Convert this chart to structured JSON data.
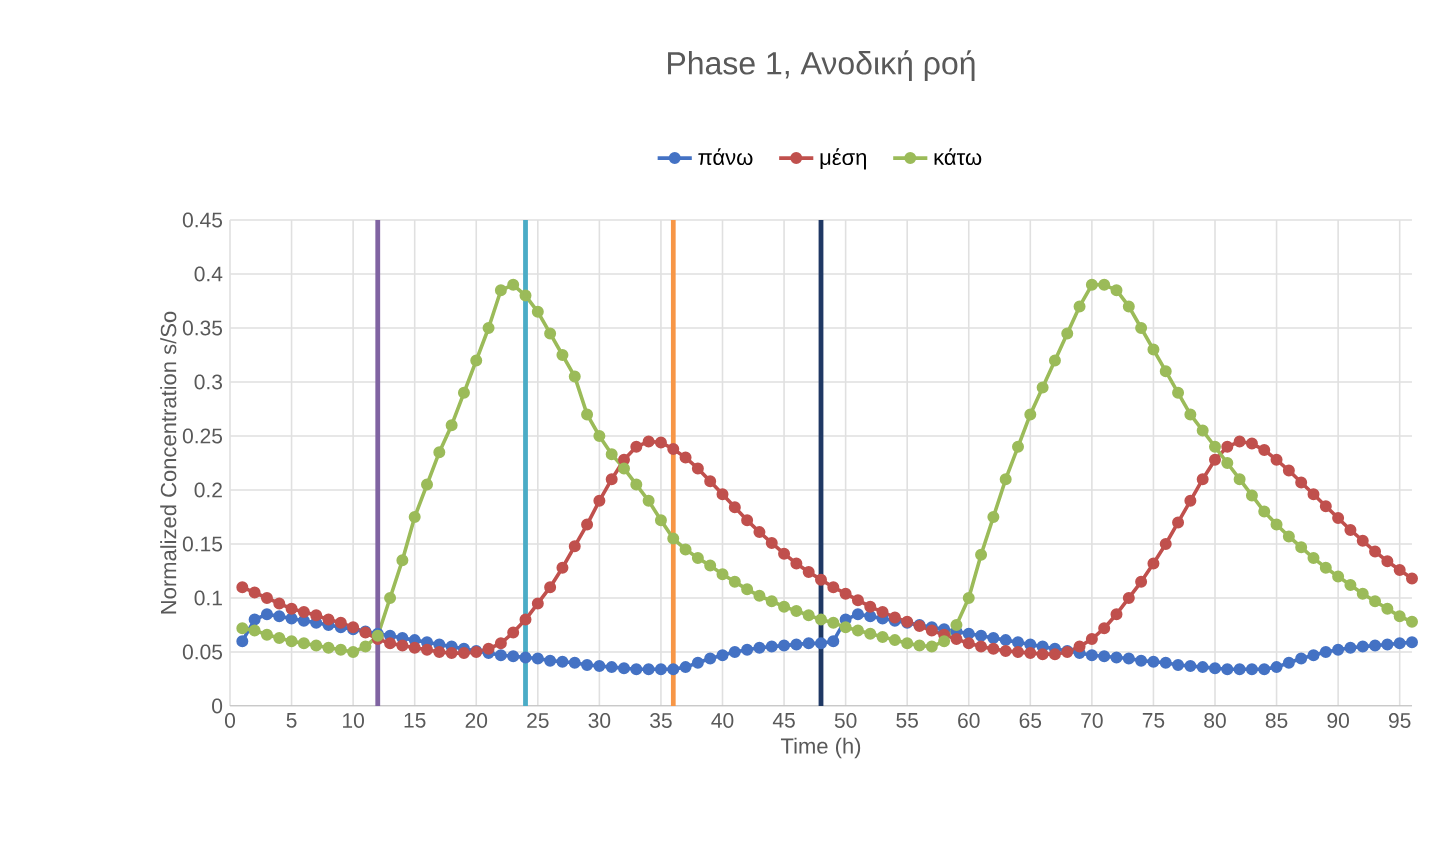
{
  "chart_data": {
    "type": "line",
    "title": "Phase 1, Ανοδική ροή",
    "xlabel": "Time (h)",
    "ylabel": "Normalized Concentration s/So",
    "x": [
      1,
      2,
      3,
      4,
      5,
      6,
      7,
      8,
      9,
      10,
      11,
      12,
      13,
      14,
      15,
      16,
      17,
      18,
      19,
      20,
      21,
      22,
      23,
      24,
      25,
      26,
      27,
      28,
      29,
      30,
      31,
      32,
      33,
      34,
      35,
      36,
      37,
      38,
      39,
      40,
      41,
      42,
      43,
      44,
      45,
      46,
      47,
      48,
      49,
      50,
      51,
      52,
      53,
      54,
      55,
      56,
      57,
      58,
      59,
      60,
      61,
      62,
      63,
      64,
      65,
      66,
      67,
      68,
      69,
      70,
      71,
      72,
      73,
      74,
      75,
      76,
      77,
      78,
      79,
      80,
      81,
      82,
      83,
      84,
      85,
      86,
      87,
      88,
      89,
      90,
      91,
      92,
      93,
      94,
      95,
      96
    ],
    "series": [
      {
        "name": "πάνω",
        "color": "#4472c4",
        "values": [
          0.06,
          0.08,
          0.085,
          0.083,
          0.081,
          0.079,
          0.077,
          0.075,
          0.073,
          0.071,
          0.069,
          0.067,
          0.065,
          0.063,
          0.061,
          0.059,
          0.057,
          0.055,
          0.053,
          0.051,
          0.049,
          0.047,
          0.046,
          0.045,
          0.044,
          0.042,
          0.041,
          0.04,
          0.038,
          0.037,
          0.036,
          0.035,
          0.034,
          0.034,
          0.034,
          0.034,
          0.036,
          0.04,
          0.044,
          0.047,
          0.05,
          0.052,
          0.054,
          0.055,
          0.056,
          0.057,
          0.058,
          0.058,
          0.06,
          0.08,
          0.085,
          0.083,
          0.081,
          0.079,
          0.077,
          0.075,
          0.073,
          0.071,
          0.069,
          0.067,
          0.065,
          0.063,
          0.061,
          0.059,
          0.057,
          0.055,
          0.053,
          0.051,
          0.049,
          0.047,
          0.046,
          0.045,
          0.044,
          0.042,
          0.041,
          0.04,
          0.038,
          0.037,
          0.036,
          0.035,
          0.034,
          0.034,
          0.034,
          0.034,
          0.036,
          0.04,
          0.044,
          0.047,
          0.05,
          0.052,
          0.054,
          0.055,
          0.056,
          0.057,
          0.058,
          0.059
        ]
      },
      {
        "name": "μέση",
        "color": "#c0504d",
        "values": [
          0.11,
          0.105,
          0.1,
          0.095,
          0.09,
          0.087,
          0.084,
          0.08,
          0.077,
          0.073,
          0.068,
          0.062,
          0.058,
          0.056,
          0.054,
          0.052,
          0.05,
          0.049,
          0.049,
          0.05,
          0.053,
          0.058,
          0.068,
          0.08,
          0.095,
          0.11,
          0.128,
          0.148,
          0.168,
          0.19,
          0.21,
          0.228,
          0.24,
          0.245,
          0.244,
          0.238,
          0.23,
          0.22,
          0.208,
          0.196,
          0.184,
          0.172,
          0.161,
          0.151,
          0.141,
          0.132,
          0.124,
          0.117,
          0.11,
          0.104,
          0.098,
          0.092,
          0.087,
          0.082,
          0.078,
          0.074,
          0.07,
          0.066,
          0.062,
          0.058,
          0.055,
          0.053,
          0.051,
          0.05,
          0.049,
          0.048,
          0.048,
          0.05,
          0.055,
          0.062,
          0.072,
          0.085,
          0.1,
          0.115,
          0.132,
          0.15,
          0.17,
          0.19,
          0.21,
          0.228,
          0.24,
          0.245,
          0.243,
          0.237,
          0.228,
          0.218,
          0.207,
          0.196,
          0.185,
          0.174,
          0.163,
          0.153,
          0.143,
          0.134,
          0.126,
          0.118
        ]
      },
      {
        "name": "κάτω",
        "color": "#9bbb59",
        "values": [
          0.072,
          0.07,
          0.066,
          0.063,
          0.06,
          0.058,
          0.056,
          0.054,
          0.052,
          0.05,
          0.055,
          0.065,
          0.1,
          0.135,
          0.175,
          0.205,
          0.235,
          0.26,
          0.29,
          0.32,
          0.35,
          0.385,
          0.39,
          0.38,
          0.365,
          0.345,
          0.325,
          0.305,
          0.27,
          0.25,
          0.233,
          0.22,
          0.205,
          0.19,
          0.172,
          0.155,
          0.145,
          0.137,
          0.13,
          0.122,
          0.115,
          0.108,
          0.102,
          0.097,
          0.092,
          0.088,
          0.084,
          0.08,
          0.077,
          0.073,
          0.07,
          0.067,
          0.064,
          0.061,
          0.058,
          0.056,
          0.055,
          0.06,
          0.075,
          0.1,
          0.14,
          0.175,
          0.21,
          0.24,
          0.27,
          0.295,
          0.32,
          0.345,
          0.37,
          0.39,
          0.39,
          0.385,
          0.37,
          0.35,
          0.33,
          0.31,
          0.29,
          0.27,
          0.255,
          0.24,
          0.225,
          0.21,
          0.195,
          0.18,
          0.168,
          0.157,
          0.147,
          0.137,
          0.128,
          0.12,
          0.112,
          0.104,
          0.097,
          0.09,
          0.083,
          0.078
        ]
      }
    ],
    "xlim": [
      0,
      96
    ],
    "xticks": [
      0,
      5,
      10,
      15,
      20,
      25,
      30,
      35,
      40,
      45,
      50,
      55,
      60,
      65,
      70,
      75,
      80,
      85,
      90,
      95
    ],
    "ylim": [
      0,
      0.45
    ],
    "yticks": [
      0,
      0.05,
      0.1,
      0.15,
      0.2,
      0.25,
      0.3,
      0.35,
      0.4,
      0.45
    ],
    "ref_lines": [
      {
        "axis": "x",
        "value": 12,
        "color": "#8064a2"
      },
      {
        "axis": "x",
        "value": 24,
        "color": "#4bacc6"
      },
      {
        "axis": "x",
        "value": 36,
        "color": "#f79646"
      },
      {
        "axis": "x",
        "value": 48,
        "color": "#1f3864"
      }
    ],
    "grid": true,
    "legend": "top",
    "marker": "circle",
    "line_style": "solid"
  }
}
